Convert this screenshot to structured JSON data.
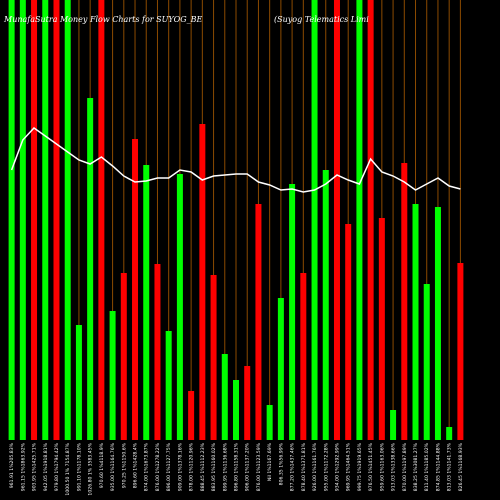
{
  "chart_data": {
    "type": "bar",
    "title_left": "MunafaSutra  Money Flow  Charts for SUYOG_BE",
    "title_right": "(Suyog Telematics Limi",
    "colors": {
      "up": "#00ff00",
      "down": "#ff0000",
      "line": "#ffffff",
      "grid": "#8b4a00",
      "background": "#000000"
    },
    "ylim": [
      0,
      440
    ],
    "line_ylim": [
      0,
      440
    ],
    "bars": [
      {
        "label": "961.91 1%205.83%",
        "value": 440,
        "color": "green"
      },
      {
        "label": "961.15 1%1863.92%",
        "value": 440,
        "color": "green"
      },
      {
        "label": "903.95 1%1425.71%",
        "value": 440,
        "color": "red"
      },
      {
        "label": "942.05 1%1918.81%",
        "value": 440,
        "color": "green"
      },
      {
        "label": "979.80 1%1794.42%",
        "value": 440,
        "color": "red"
      },
      {
        "label": "1000.50 1% 7154.87%",
        "value": 440,
        "color": "green"
      },
      {
        "label": "991.10 1%1178.10%",
        "value": 115,
        "color": "green"
      },
      {
        "label": "1026.80 1% 3583.45%",
        "value": 342,
        "color": "green"
      },
      {
        "label": "970.60 1%4118.9%",
        "value": 440,
        "color": "red"
      },
      {
        "label": "935.00 1%1164.76%",
        "value": 129,
        "color": "green"
      },
      {
        "label": "970.25 1%1150.6%",
        "value": 167,
        "color": "red"
      },
      {
        "label": "896.60 1%1428.4%",
        "value": 301,
        "color": "red"
      },
      {
        "label": "874.00 1%1673.87%",
        "value": 275,
        "color": "green"
      },
      {
        "label": "876.00 1%1278.22%",
        "value": 176,
        "color": "red"
      },
      {
        "label": "896.00 1%1127.75%",
        "value": 109,
        "color": "green"
      },
      {
        "label": "909.00 1%1378.16%",
        "value": 266,
        "color": "green"
      },
      {
        "label": "878.00 1%1120.96%",
        "value": 49,
        "color": "red"
      },
      {
        "label": "888.45 1%1112.23%",
        "value": 316,
        "color": "red"
      },
      {
        "label": "883.95 1%1160.02%",
        "value": 165,
        "color": "red"
      },
      {
        "label": "899.95 1%1136.68%",
        "value": 86,
        "color": "green"
      },
      {
        "label": "896.80 1%1158.31%",
        "value": 60,
        "color": "green"
      },
      {
        "label": "906.00 1%1137.20%",
        "value": 74,
        "color": "red"
      },
      {
        "label": "876.00 1%1123.59%",
        "value": 236,
        "color": "red"
      },
      {
        "label": "Nil 1%1167.69%",
        "value": 35,
        "color": "green"
      },
      {
        "label": "806.35 1%56.99%",
        "value": 142,
        "color": "green"
      },
      {
        "label": "877.20 1%1437.46%",
        "value": 256,
        "color": "green"
      },
      {
        "label": "878.40 1%1371.81%",
        "value": 167,
        "color": "red"
      },
      {
        "label": "926.00 1%1161.76%",
        "value": 440,
        "color": "green"
      },
      {
        "label": "955.00 1%1172.28%",
        "value": 270,
        "color": "green"
      },
      {
        "label": "934.00 1%1292.99%",
        "value": 440,
        "color": "red"
      },
      {
        "label": "969.95 1%1464.51%",
        "value": 216,
        "color": "red"
      },
      {
        "label": "999.75 1%1919.65%",
        "value": 440,
        "color": "green"
      },
      {
        "label": "976.50 1%1451.45%",
        "value": 440,
        "color": "red"
      },
      {
        "label": "959.60 1%1163.06%",
        "value": 222,
        "color": "red"
      },
      {
        "label": "913.03 1%1338.66%",
        "value": 30,
        "color": "green"
      },
      {
        "label": "870.00 1%1197.89%",
        "value": 277,
        "color": "red"
      },
      {
        "label": "838.25 1%3081.27%",
        "value": 236,
        "color": "green"
      },
      {
        "label": "811.40 1%1185.02%",
        "value": 156,
        "color": "green"
      },
      {
        "label": "874.85 1%1144.88%",
        "value": 233,
        "color": "green"
      },
      {
        "label": "813.03 1%1141.73%",
        "value": 13,
        "color": "green"
      },
      {
        "label": "826.45 1%1168.93%",
        "value": 177,
        "color": "red"
      }
    ],
    "line": [
      270,
      300,
      312,
      304,
      296,
      288,
      280,
      276,
      283,
      274,
      264,
      258,
      259,
      262,
      262,
      270,
      268,
      260,
      264,
      265,
      266,
      266,
      258,
      255,
      250,
      251,
      248,
      250,
      256,
      265,
      260,
      256,
      281,
      268,
      264,
      258,
      250,
      256,
      262,
      254,
      251
    ]
  }
}
